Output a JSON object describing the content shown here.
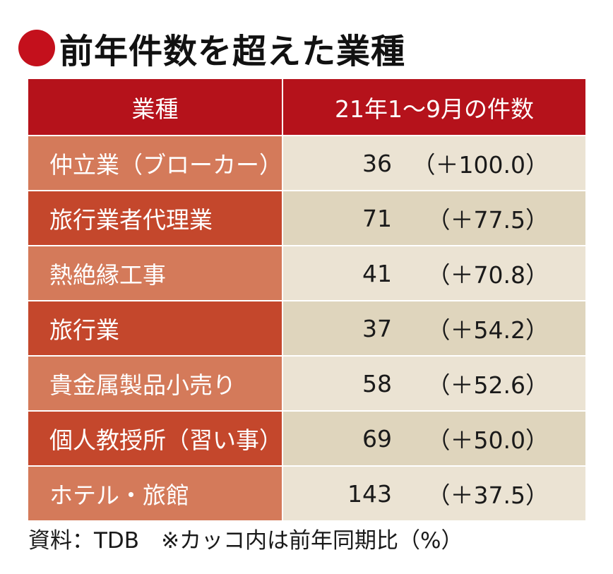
{
  "title": "前年件数を超えた業種",
  "colors": {
    "title_dot": "#c4101c",
    "header_bg": "#b5121b",
    "name_odd_bg": "#d47a5a",
    "name_even_bg": "#c4472c",
    "value_odd_bg": "#ebe3d3",
    "value_even_bg": "#dfd5bd"
  },
  "chart_data": {
    "type": "table",
    "columns": [
      "業種",
      "21年1～9月の件数"
    ],
    "rows": [
      {
        "industry": "仲立業（ブローカー）",
        "count": "36",
        "change": "（＋100.0）"
      },
      {
        "industry": "旅行業者代理業",
        "count": "71",
        "change": "（＋77.5）"
      },
      {
        "industry": "熱絶縁工事",
        "count": "41",
        "change": "（＋70.8）"
      },
      {
        "industry": "旅行業",
        "count": "37",
        "change": "（＋54.2）"
      },
      {
        "industry": "貴金属製品小売り",
        "count": "58",
        "change": "（＋52.6）"
      },
      {
        "industry": "個人教授所（習い事）",
        "count": "69",
        "change": "（＋50.0）"
      },
      {
        "industry": "ホテル・旅館",
        "count": "143",
        "change": "（＋37.5）"
      }
    ]
  },
  "footnote": "資料：TDB　※カッコ内は前年同期比（%）"
}
